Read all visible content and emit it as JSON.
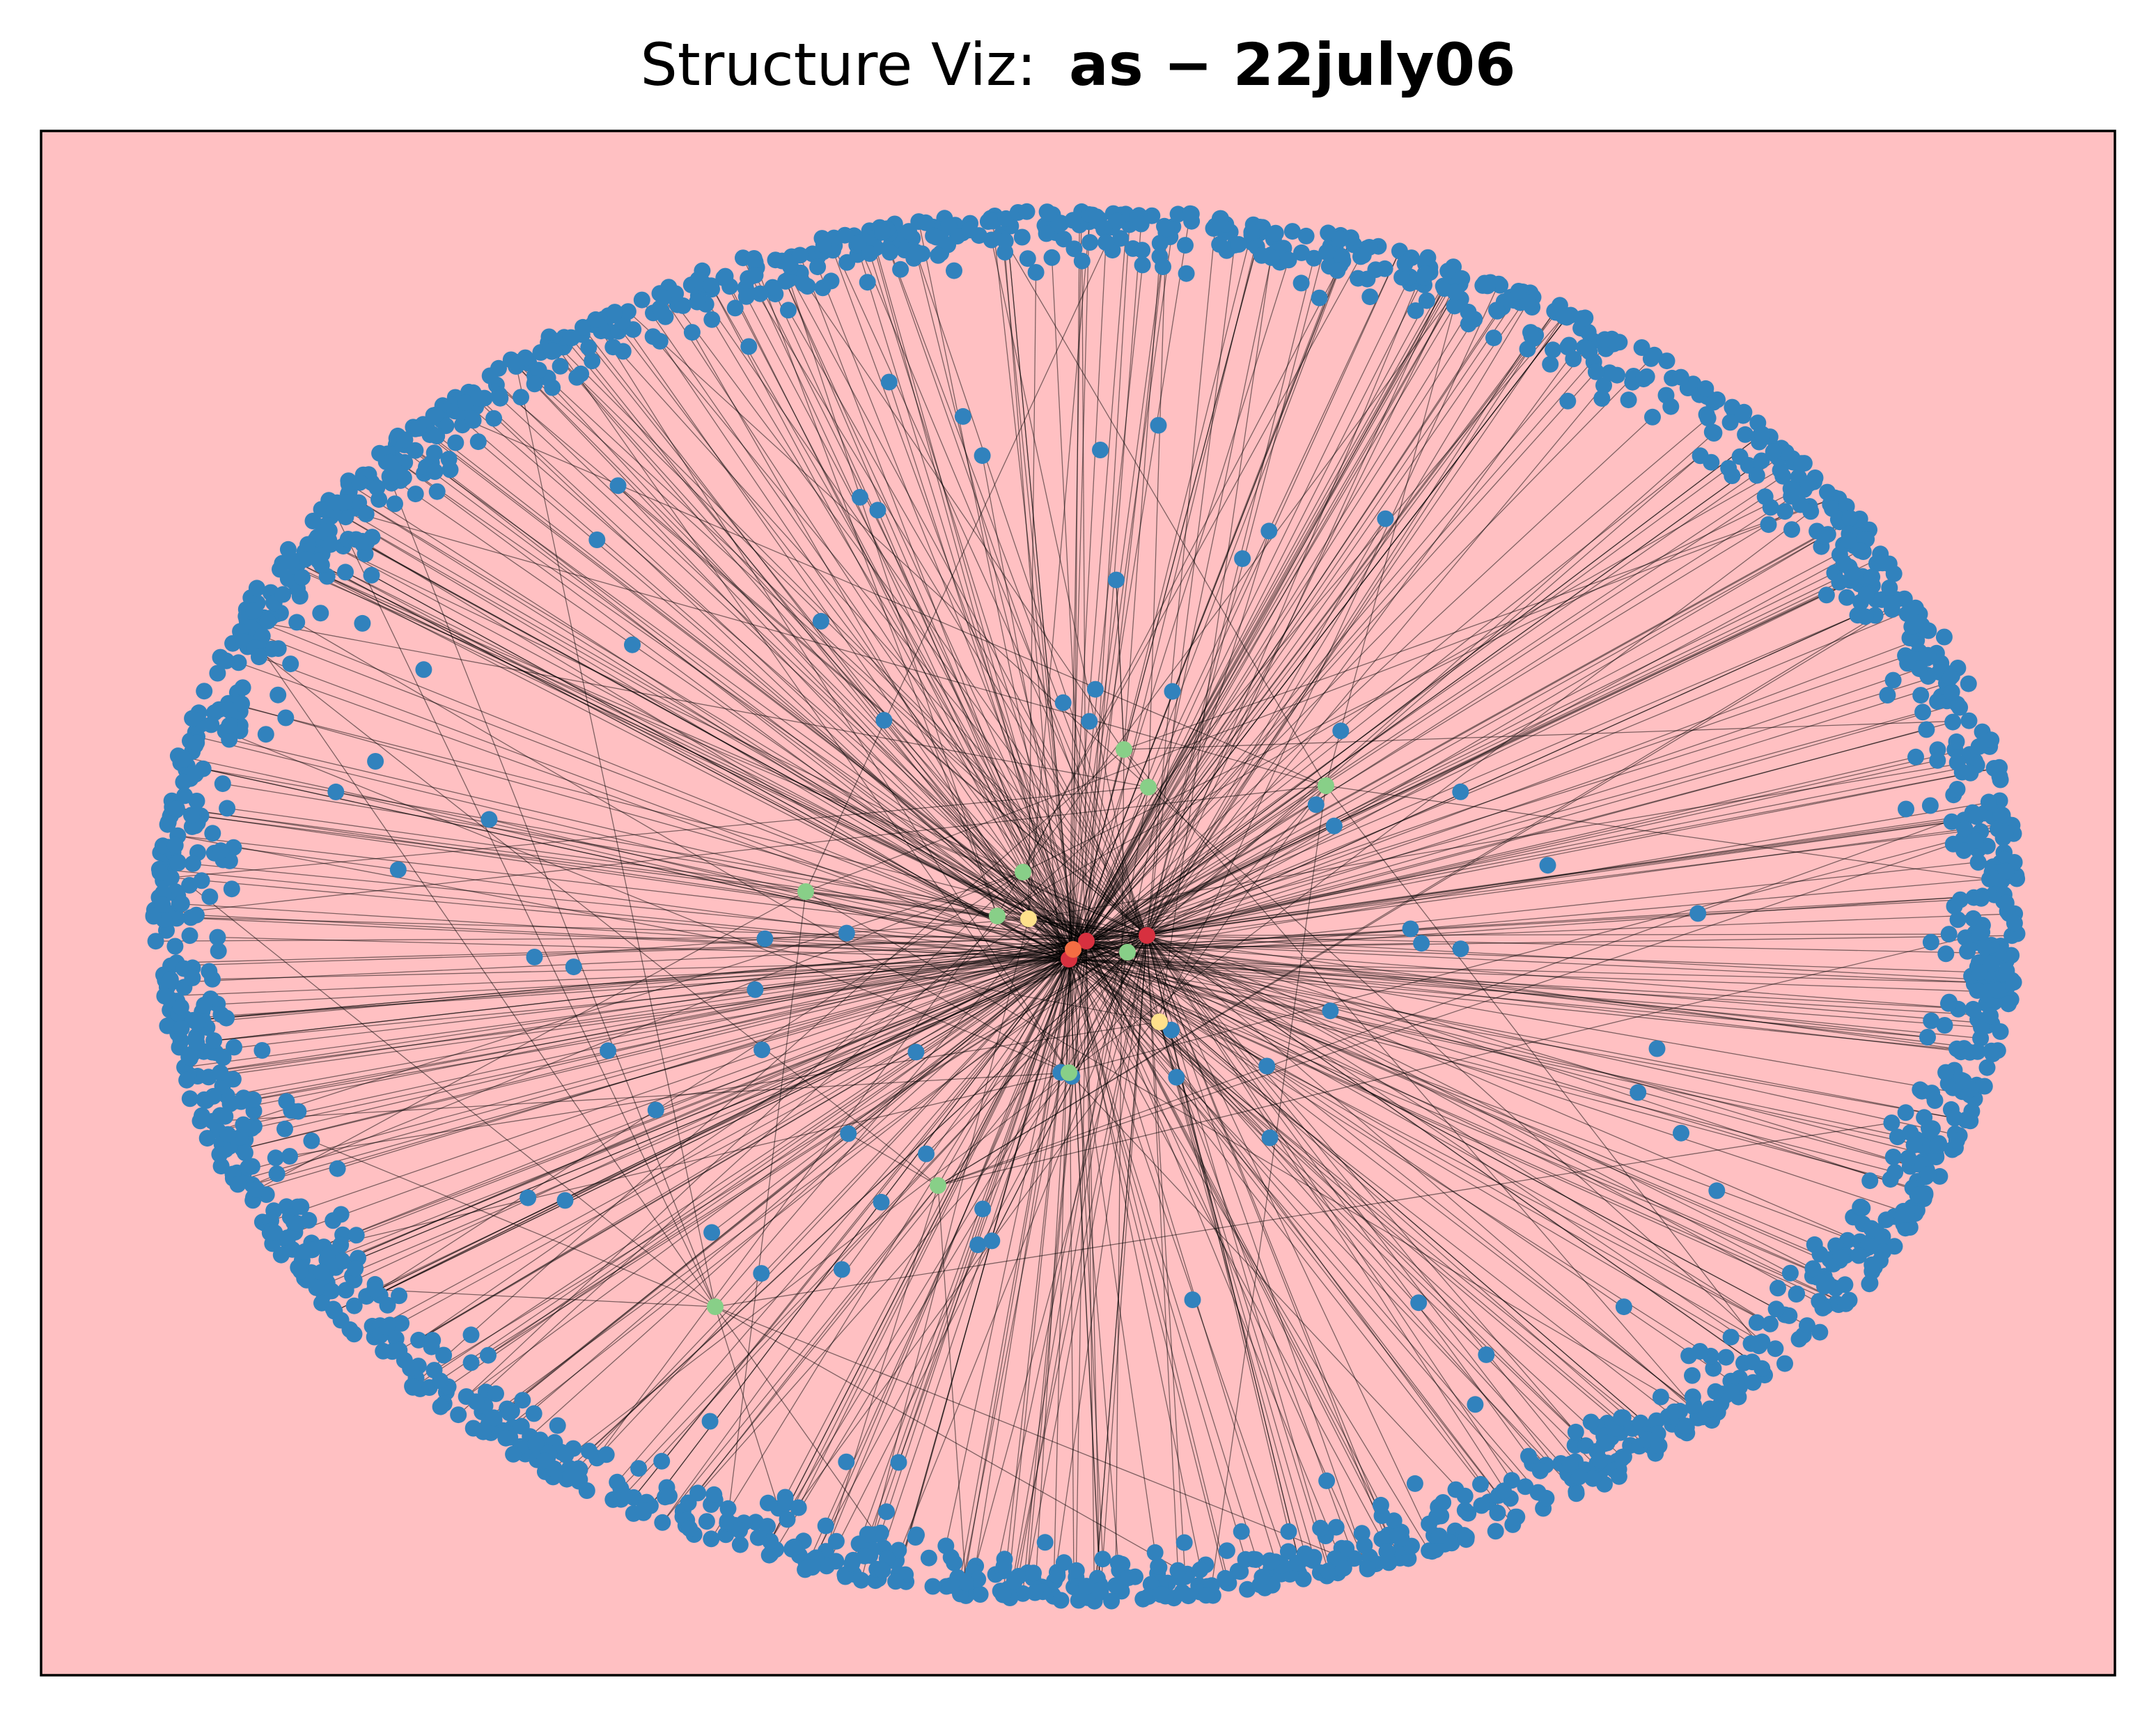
{
  "header": {
    "title_prefix": "Structure Viz:",
    "title_name": "as − 22july06"
  }
}
